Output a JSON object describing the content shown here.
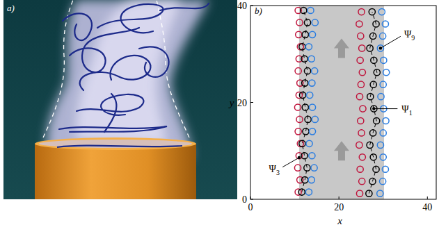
{
  "panel_a": {
    "label": "a)"
  },
  "chart_data": {
    "type": "scatter",
    "label": "b)",
    "xlabel": "x",
    "ylabel": "y",
    "xlim": [
      0,
      42
    ],
    "ylim": [
      0,
      40
    ],
    "xticks": [
      0,
      20,
      40
    ],
    "yticks": [
      0,
      20,
      40
    ],
    "band": {
      "x": [
        11,
        30.2
      ],
      "color": "#c8c8c8"
    },
    "series": [
      {
        "color": "#c0143c",
        "marker": "circle",
        "line_style": "none",
        "x": [
          10.8,
          11.2,
          10.7,
          11.0,
          11.3,
          10.8,
          11.1,
          10.7,
          11.0,
          11.2,
          10.8,
          11.0,
          11.3,
          10.9,
          11.1,
          10.8
        ],
        "values": [
          1.5,
          4,
          6.5,
          9,
          11.5,
          14,
          16.5,
          19,
          21.5,
          24,
          26.5,
          29,
          31.5,
          34,
          36.5,
          39
        ]
      },
      {
        "color": "#000000",
        "marker": "circle",
        "line_style": "dashed",
        "x": [
          11.6,
          12.3,
          12.8,
          12.2,
          11.7,
          12.5,
          13.0,
          12.4,
          11.8,
          12.3,
          12.9,
          12.2,
          11.7,
          12.4,
          12.9,
          12.0
        ],
        "values": [
          1.5,
          4,
          6.5,
          9,
          11.5,
          14,
          16.5,
          19,
          21.5,
          24,
          26.5,
          29,
          31.5,
          34,
          36.5,
          39
        ]
      },
      {
        "color": "#2a7de1",
        "marker": "circle",
        "line_style": "none",
        "x": [
          13.2,
          13.8,
          14.4,
          13.9,
          13.3,
          14.0,
          14.6,
          14.0,
          13.4,
          13.9,
          14.5,
          13.8,
          13.2,
          14.0,
          14.6,
          13.6
        ],
        "values": [
          1.5,
          4,
          6.5,
          9,
          11.5,
          14,
          16.5,
          19,
          21.5,
          24,
          26.5,
          29,
          31.5,
          34,
          36.5,
          39
        ]
      },
      {
        "color": "#c0143c",
        "marker": "circle",
        "line_style": "none",
        "x": [
          24.7,
          25.2,
          24.8,
          25.3,
          24.6,
          25.1,
          24.9,
          25.4,
          24.7,
          25.0,
          25.3,
          24.8,
          25.2,
          24.9,
          24.6,
          25.1
        ],
        "values": [
          1.2,
          3.7,
          6.2,
          8.7,
          11.2,
          13.7,
          16.2,
          18.7,
          21.2,
          23.7,
          26.2,
          28.7,
          31.2,
          33.7,
          36.2,
          38.7
        ]
      },
      {
        "color": "#000000",
        "marker": "circle",
        "line_style": "dashed",
        "x": [
          26.8,
          27.6,
          28.4,
          27.8,
          27.0,
          27.7,
          28.5,
          27.9,
          27.1,
          27.8,
          28.6,
          27.9,
          27.0,
          27.7,
          28.4,
          27.5
        ],
        "values": [
          1.2,
          3.7,
          6.2,
          8.7,
          11.2,
          13.7,
          16.2,
          18.7,
          21.2,
          23.7,
          26.2,
          28.7,
          31.2,
          33.7,
          36.2,
          38.7
        ]
      },
      {
        "color": "#2a7de1",
        "marker": "circle",
        "line_style": "none",
        "x": [
          29.3,
          29.9,
          30.5,
          30.0,
          29.4,
          30.0,
          30.6,
          30.1,
          29.5,
          30.0,
          30.7,
          30.1,
          29.4,
          29.9,
          30.5,
          29.7
        ],
        "values": [
          1.2,
          3.7,
          6.2,
          8.7,
          11.2,
          13.7,
          16.2,
          18.7,
          21.2,
          23.7,
          26.2,
          28.7,
          31.2,
          33.7,
          36.2,
          38.7
        ]
      }
    ],
    "annotations": [
      {
        "symbol": "Ψ",
        "index": "3",
        "point": [
          11.0,
          8.6
        ]
      },
      {
        "symbol": "Ψ",
        "index": "1",
        "point": [
          27.9,
          18.7
        ]
      },
      {
        "symbol": "Ψ",
        "index": "9",
        "point": [
          29.4,
          31.2
        ]
      }
    ]
  }
}
